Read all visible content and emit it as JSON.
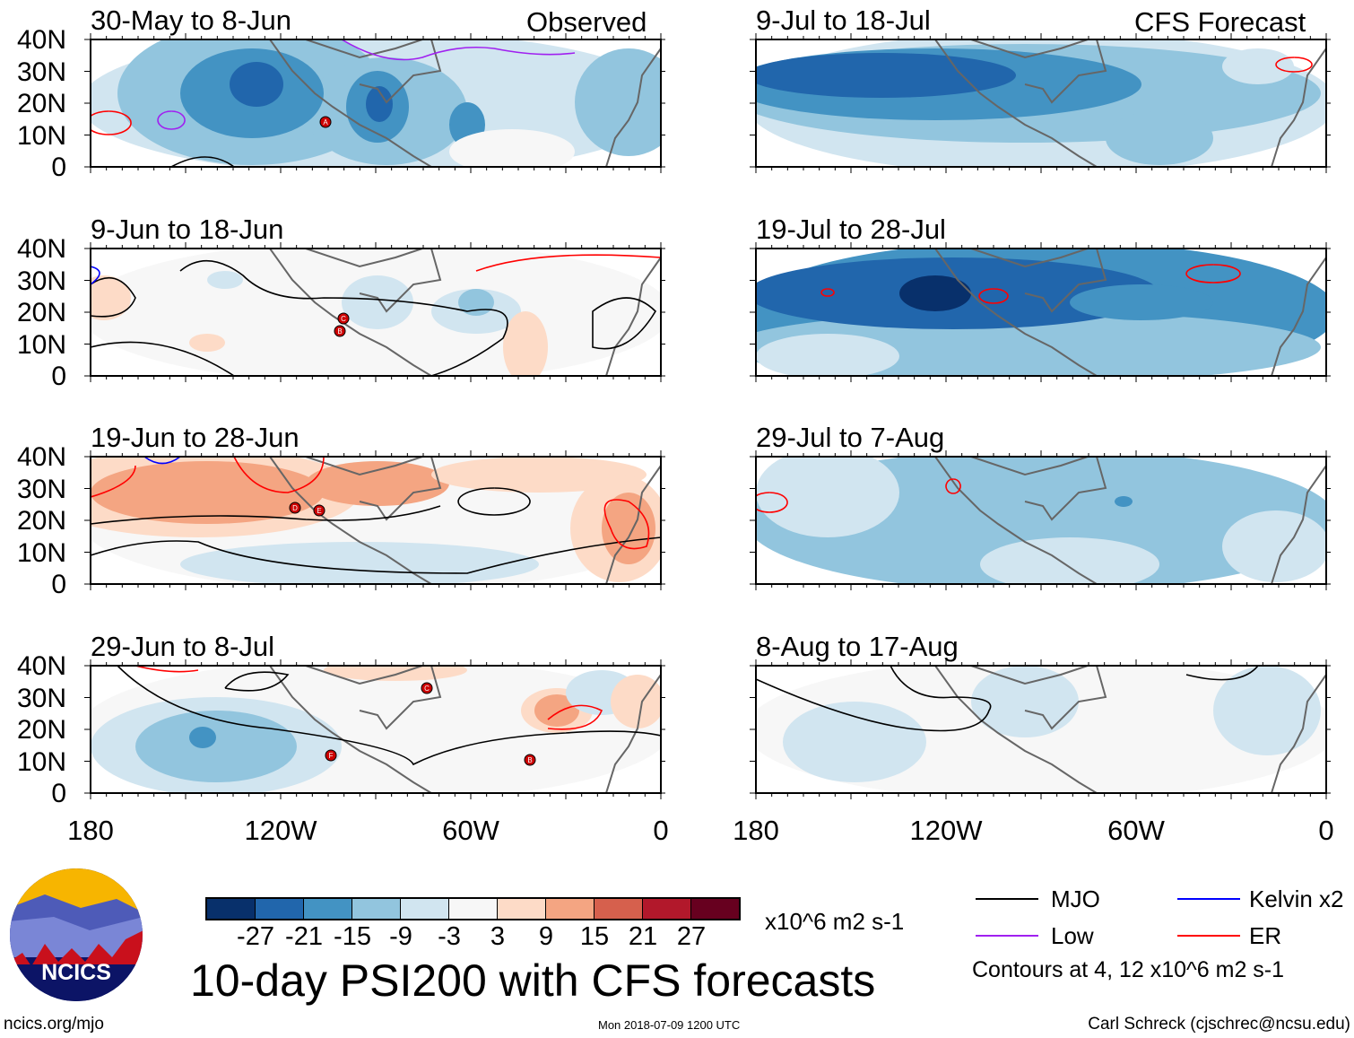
{
  "observed_label": "Observed",
  "forecast_label": "CFS Forecast",
  "panels": [
    {
      "title": "30-May to 8-Jun",
      "column": "observed",
      "storms": [
        "A"
      ]
    },
    {
      "title": "9-Jun to 18-Jun",
      "column": "observed",
      "storms": [
        "C",
        "B"
      ]
    },
    {
      "title": "19-Jun to 28-Jun",
      "column": "observed",
      "storms": [
        "D",
        "E"
      ]
    },
    {
      "title": "29-Jun to 8-Jul",
      "column": "observed",
      "storms": [
        "C",
        "F",
        "B"
      ]
    },
    {
      "title": "9-Jul to 18-Jul",
      "column": "forecast",
      "storms": []
    },
    {
      "title": "19-Jul to 28-Jul",
      "column": "forecast",
      "storms": []
    },
    {
      "title": "29-Jul to 7-Aug",
      "column": "forecast",
      "storms": []
    },
    {
      "title": "8-Aug to 17-Aug",
      "column": "forecast",
      "storms": []
    }
  ],
  "y_ticks": [
    "40N",
    "30N",
    "20N",
    "10N",
    "0"
  ],
  "x_ticks": [
    "180",
    "120W",
    "60W",
    "0"
  ],
  "colorbar": {
    "colors": [
      "#08306b",
      "#2166ac",
      "#4393c3",
      "#92c5de",
      "#d1e5f0",
      "#f7f7f7",
      "#fddbc7",
      "#f4a582",
      "#d6604d",
      "#b2182b",
      "#67001f"
    ],
    "labels": [
      "-27",
      "-21",
      "-15",
      "-9",
      "-3",
      "3",
      "9",
      "15",
      "21",
      "27"
    ],
    "units": "x10^6 m2 s-1"
  },
  "legend": [
    {
      "label": "MJO",
      "color": "#000000"
    },
    {
      "label": "Kelvin x2",
      "color": "#0000ff"
    },
    {
      "label": "Low",
      "color": "#a020f0"
    },
    {
      "label": "ER",
      "color": "#ff0000"
    }
  ],
  "contours_note": "Contours at 4, 12 x10^6 m2 s-1",
  "main_title": "10-day PSI200 with CFS forecasts",
  "logo_text": "NCICS",
  "footer": {
    "left": "ncics.org/mjo",
    "center": "Mon 2018-07-09 1200 UTC",
    "right": "Carl Schreck (cjschrec@ncsu.edu)"
  }
}
